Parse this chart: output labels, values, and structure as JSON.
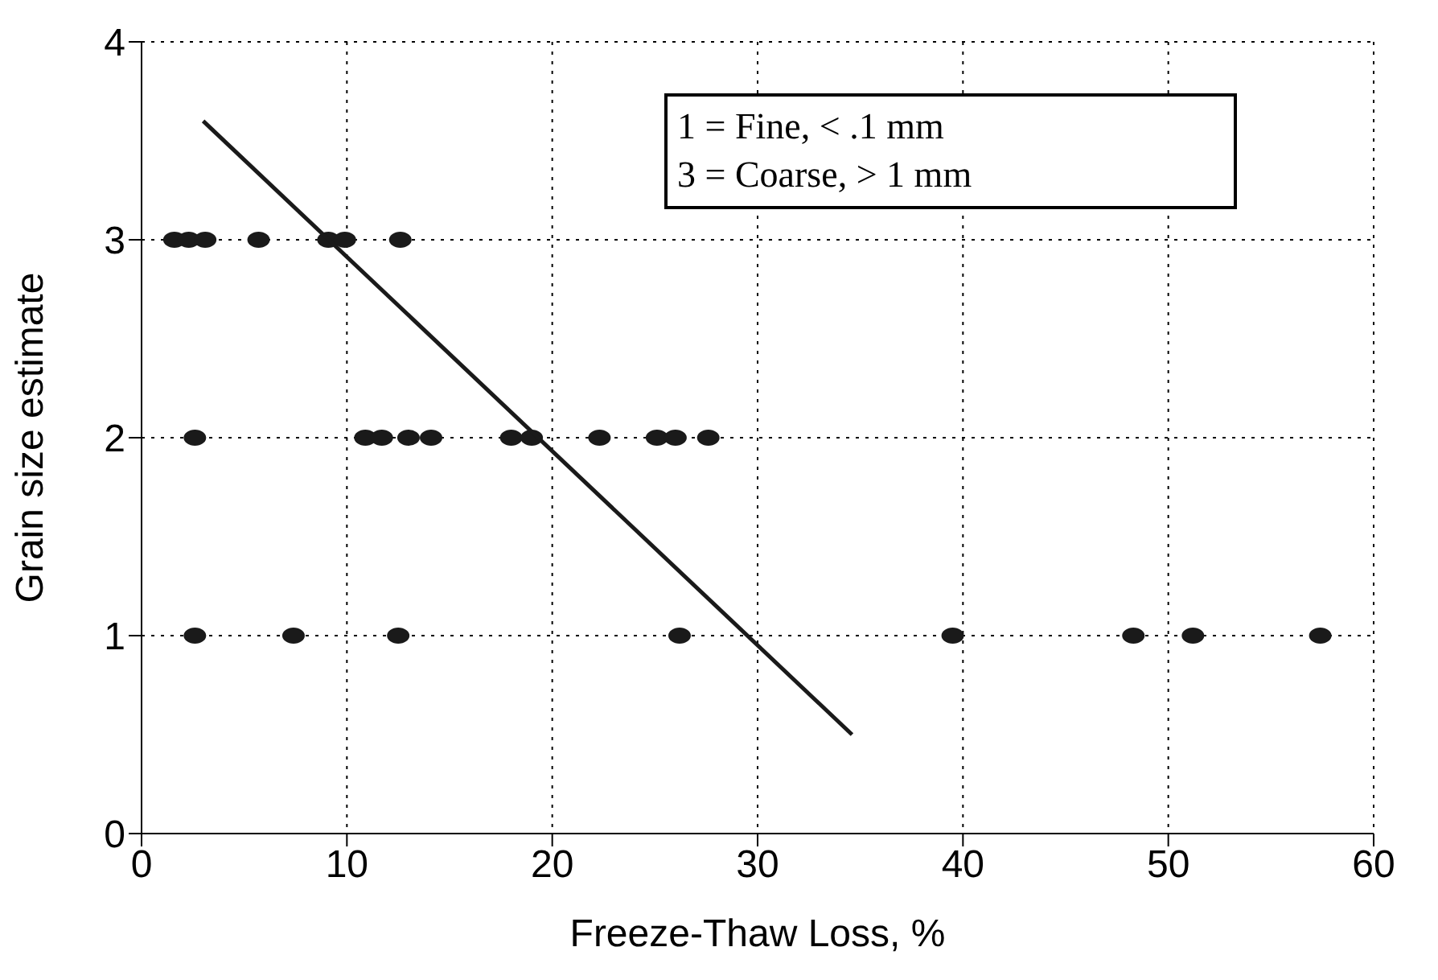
{
  "chart_data": {
    "type": "scatter",
    "xlabel": "Freeze-Thaw Loss, %",
    "ylabel": "Grain size estimate",
    "xlim": [
      0,
      60
    ],
    "xticks": [
      0,
      10,
      20,
      30,
      40,
      50,
      60
    ],
    "ylim": [
      0,
      4
    ],
    "yticks": [
      0,
      1,
      2,
      3,
      4
    ],
    "grid": true,
    "legend": false,
    "marker": "circle",
    "annotations": [
      "1 = Fine, < .1 mm",
      "3 = Coarse, > 1 mm"
    ],
    "series": [
      {
        "color": "#1a1a1a",
        "x": [
          1.6,
          2.3,
          3.1,
          5.7,
          9.1,
          9.9,
          12.6,
          2.6,
          10.9,
          11.7,
          13.0,
          14.1,
          18.0,
          19.0,
          22.3,
          25.1,
          26.0,
          27.6,
          2.6,
          7.4,
          12.5,
          26.2,
          39.5,
          48.3,
          51.2,
          57.4
        ],
        "values": [
          3,
          3,
          3,
          3,
          3,
          3,
          3,
          2,
          2,
          2,
          2,
          2,
          2,
          2,
          2,
          2,
          2,
          2,
          1,
          1,
          1,
          1,
          1,
          1,
          1,
          1
        ]
      },
      {
        "type": "line",
        "color": "#1a1a1a",
        "marker": "none",
        "x": [
          3,
          34.6
        ],
        "values": [
          3.6,
          0.5
        ]
      }
    ]
  }
}
